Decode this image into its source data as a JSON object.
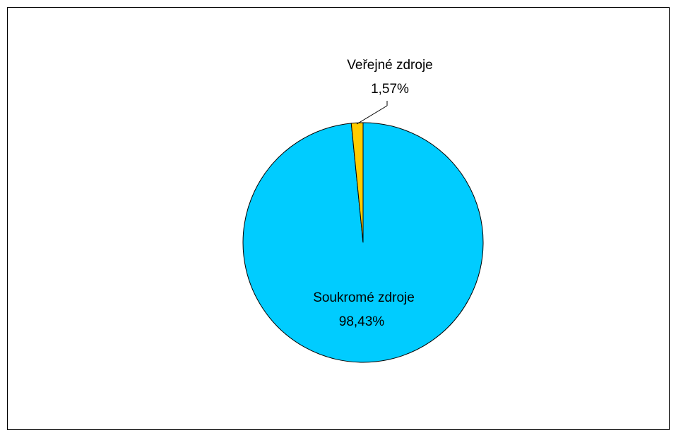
{
  "chart_data": {
    "type": "pie",
    "title": "",
    "start_angle_deg": 0,
    "direction": "counterclockwise",
    "slices": [
      {
        "name": "Soukromé zdroje",
        "label": "Soukromé zdroje",
        "value": 98.43,
        "value_text": "98,43%",
        "color": "#00CCFF"
      },
      {
        "name": "Veřejné zdroje",
        "label": "Veřejné zdroje",
        "value": 1.57,
        "value_text": "1,57%",
        "color": "#FFCC00"
      }
    ],
    "legend": "none",
    "edge_color": "#000000"
  }
}
